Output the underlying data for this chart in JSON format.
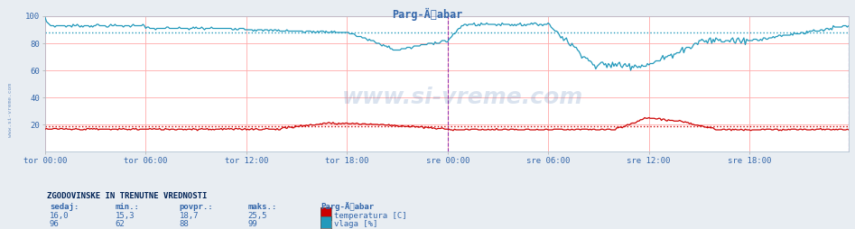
{
  "title": "Parg-Äabar",
  "bg_color": "#e8edf2",
  "plot_bg_color": "#ffffff",
  "grid_h_color": "#ffcccc",
  "grid_v_color": "#ffcccc",
  "ylabel_color": "#3366aa",
  "xlabel_color": "#3366aa",
  "ylim": [
    0,
    100
  ],
  "yticks": [
    20,
    40,
    60,
    80,
    100
  ],
  "xlim": [
    0,
    575
  ],
  "xtick_labels": [
    "tor 00:00",
    "tor 06:00",
    "tor 12:00",
    "tor 18:00",
    "sre 00:00",
    "sre 06:00",
    "sre 12:00",
    "sre 18:00"
  ],
  "xtick_positions": [
    0,
    72,
    144,
    216,
    288,
    360,
    432,
    504
  ],
  "temp_color": "#cc0000",
  "humid_color": "#2299bb",
  "temp_avg": 18.7,
  "humid_avg": 88,
  "temp_min": 15.3,
  "temp_max": 25.5,
  "humid_min": 62,
  "humid_max": 99,
  "temp_current": 16.0,
  "humid_current": 96,
  "watermark": "www.si-vreme.com",
  "watermark_color": "#3366aa",
  "watermark_alpha": 0.18,
  "vline_color": "#9933aa",
  "vline_pos": 288,
  "right_vline_pos": 575,
  "sidebar_color": "#3366aa",
  "title_color": "#3366aa",
  "stats_title": "ZGODOVINSKE IN TRENUTNE VREDNOSTI",
  "stats_headers": [
    "sedaj:",
    "min.:",
    "povpr.:",
    "maks.:",
    "Parg-Äabar"
  ],
  "stats_row1": [
    "16,0",
    "15,3",
    "18,7",
    "25,5",
    "temperatura [C]"
  ],
  "stats_row2": [
    "96",
    "62",
    "88",
    "99",
    "vlaga [%]"
  ],
  "legend_temp_color": "#cc0000",
  "legend_humid_color": "#2299bb"
}
